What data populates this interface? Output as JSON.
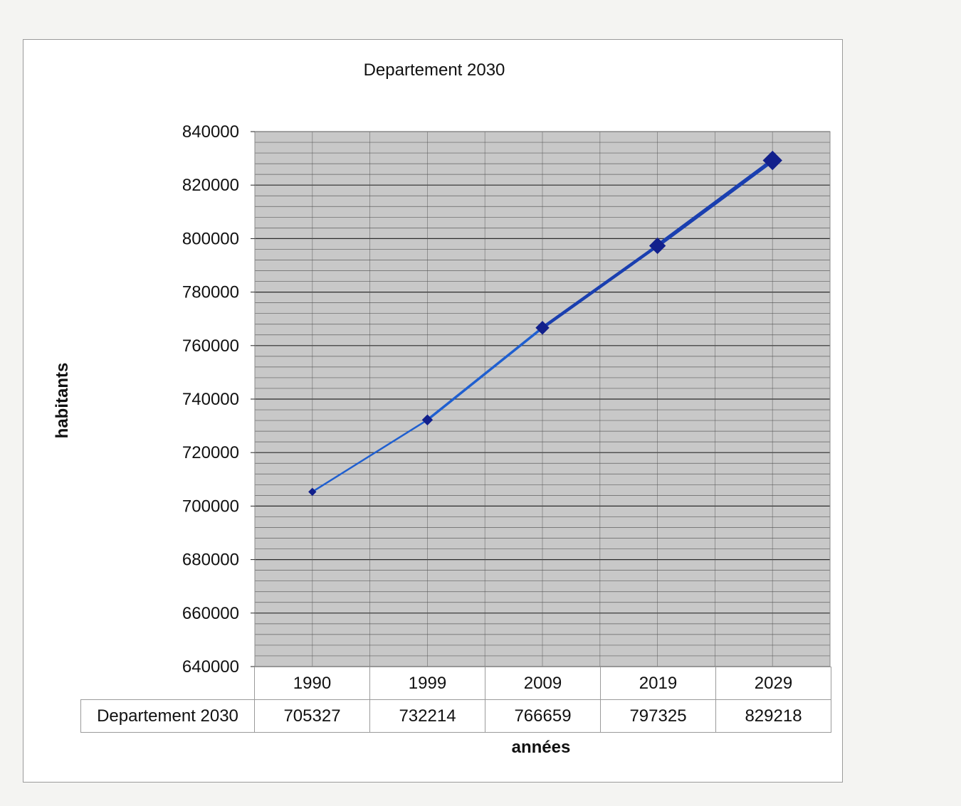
{
  "chart_data": {
    "type": "line",
    "title": "Departement 2030",
    "xlabel": "années",
    "ylabel": "habitants",
    "categories": [
      "1990",
      "1999",
      "2009",
      "2019",
      "2029"
    ],
    "series": [
      {
        "name": "Departement 2030",
        "values": [
          705327,
          732214,
          766659,
          797325,
          829218
        ]
      }
    ],
    "ylim": [
      640000,
      840000
    ],
    "yticks": [
      "840000",
      "820000",
      "800000",
      "780000",
      "760000",
      "740000",
      "720000",
      "700000",
      "680000",
      "660000",
      "640000"
    ],
    "grid": true,
    "data_table": true,
    "colors": {
      "line": "#1f5fd0",
      "marker": "#12208c",
      "plot_bg": "#c8c8c8",
      "grid": "#1a1a1a"
    }
  }
}
